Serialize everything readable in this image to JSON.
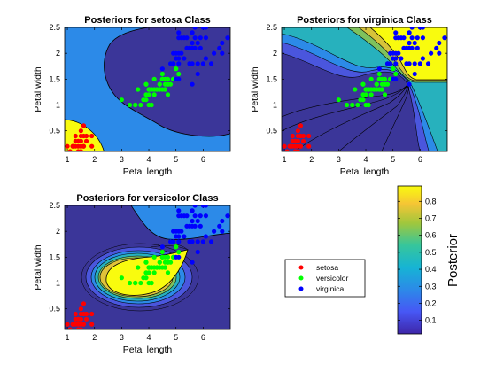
{
  "figure": {
    "colorbar": {
      "label": "Posterior",
      "ticks": [
        0.1,
        0.2,
        0.3,
        0.4,
        0.5,
        0.6,
        0.7,
        0.8
      ],
      "range": [
        0.02,
        0.89
      ]
    },
    "legend": {
      "placement": "bottom-right",
      "entries": [
        {
          "name": "setosa",
          "color": "#ff0000"
        },
        {
          "name": "versicolor",
          "color": "#00ff00"
        },
        {
          "name": "virginica",
          "color": "#0000ff"
        }
      ]
    },
    "colors": {
      "low": "#3b3699",
      "blue": "#2c8ae8",
      "teal": "#2cb8b0",
      "yellow": "#f9fb0e"
    }
  },
  "chart_data": [
    {
      "type": "heatmap",
      "title": "Posteriors for setosa Class",
      "xlabel": "Petal length",
      "ylabel": "Petal width",
      "xlim": [
        0.9,
        7.0
      ],
      "ylim": [
        0.1,
        2.5
      ],
      "xticks": [
        1,
        2,
        3,
        4,
        5,
        6
      ],
      "yticks": [
        0.5,
        1,
        1.5,
        2,
        2.5
      ],
      "grid": false
    },
    {
      "type": "heatmap",
      "title": "Posteriors for virginica Class",
      "xlabel": "Petal length",
      "ylabel": "Petal width",
      "xlim": [
        0.9,
        7.0
      ],
      "ylim": [
        0.1,
        2.5
      ],
      "xticks": [
        1,
        2,
        3,
        4,
        5,
        6
      ],
      "yticks": [
        0.5,
        1,
        1.5,
        2,
        2.5
      ],
      "grid": false
    },
    {
      "type": "heatmap",
      "title": "Posteriors for versicolor Class",
      "xlabel": "Petal length",
      "ylabel": "Petal width",
      "xlim": [
        0.9,
        7.0
      ],
      "ylim": [
        0.1,
        2.5
      ],
      "xticks": [
        1,
        2,
        3,
        4,
        5,
        6
      ],
      "yticks": [
        0.5,
        1,
        1.5,
        2,
        2.5
      ],
      "grid": false
    }
  ],
  "scatter": {
    "setosa": [
      [
        1.4,
        0.2
      ],
      [
        1.3,
        0.2
      ],
      [
        1.5,
        0.2
      ],
      [
        1.7,
        0.4
      ],
      [
        1.4,
        0.3
      ],
      [
        1.5,
        0.1
      ],
      [
        1.6,
        0.2
      ],
      [
        1.1,
        0.1
      ],
      [
        1.2,
        0.2
      ],
      [
        1.3,
        0.4
      ],
      [
        1.7,
        0.3
      ],
      [
        1.5,
        0.4
      ],
      [
        1.0,
        0.2
      ],
      [
        1.9,
        0.2
      ],
      [
        1.6,
        0.4
      ],
      [
        1.9,
        0.4
      ],
      [
        1.6,
        0.6
      ],
      [
        1.5,
        0.3
      ],
      [
        1.4,
        0.1
      ],
      [
        1.2,
        0.2
      ],
      [
        1.3,
        0.3
      ],
      [
        1.6,
        0.2
      ],
      [
        1.5,
        0.5
      ]
    ],
    "versicolor": [
      [
        4.7,
        1.4
      ],
      [
        4.5,
        1.5
      ],
      [
        4.9,
        1.5
      ],
      [
        4.0,
        1.3
      ],
      [
        4.6,
        1.5
      ],
      [
        3.3,
        1.0
      ],
      [
        3.9,
        1.4
      ],
      [
        3.5,
        1.0
      ],
      [
        4.2,
        1.5
      ],
      [
        4.0,
        1.0
      ],
      [
        4.7,
        1.4
      ],
      [
        3.6,
        1.3
      ],
      [
        4.4,
        1.4
      ],
      [
        4.1,
        1.0
      ],
      [
        4.5,
        1.5
      ],
      [
        3.9,
        1.1
      ],
      [
        4.8,
        1.8
      ],
      [
        4.0,
        1.3
      ],
      [
        4.9,
        1.5
      ],
      [
        4.7,
        1.2
      ],
      [
        4.3,
        1.3
      ],
      [
        4.4,
        1.4
      ],
      [
        5.0,
        1.7
      ],
      [
        4.5,
        1.5
      ],
      [
        3.5,
        1.0
      ],
      [
        3.8,
        1.1
      ],
      [
        3.7,
        1.0
      ],
      [
        3.9,
        1.2
      ],
      [
        5.1,
        1.6
      ],
      [
        4.5,
        1.6
      ],
      [
        4.7,
        1.5
      ],
      [
        4.4,
        1.3
      ],
      [
        4.1,
        1.3
      ],
      [
        4.0,
        1.2
      ],
      [
        4.6,
        1.4
      ],
      [
        3.0,
        1.1
      ],
      [
        4.2,
        1.2
      ],
      [
        4.2,
        1.3
      ],
      [
        4.3,
        1.3
      ],
      [
        4.1,
        1.3
      ],
      [
        4.5,
        1.3
      ],
      [
        4.6,
        1.3
      ],
      [
        3.9,
        1.4
      ],
      [
        4.8,
        1.4
      ],
      [
        4.1,
        1.0
      ],
      [
        4.8,
        1.8
      ],
      [
        4.9,
        1.5
      ],
      [
        4.0,
        1.3
      ],
      [
        4.6,
        1.3
      ],
      [
        5.0,
        1.7
      ]
    ],
    "virginica": [
      [
        6.0,
        2.5
      ],
      [
        5.1,
        1.9
      ],
      [
        5.9,
        2.1
      ],
      [
        5.6,
        1.8
      ],
      [
        5.8,
        2.2
      ],
      [
        6.6,
        2.1
      ],
      [
        4.5,
        1.7
      ],
      [
        6.3,
        1.8
      ],
      [
        5.8,
        1.8
      ],
      [
        6.1,
        2.5
      ],
      [
        5.1,
        2.0
      ],
      [
        5.3,
        1.9
      ],
      [
        5.5,
        2.1
      ],
      [
        5.0,
        2.0
      ],
      [
        5.1,
        2.4
      ],
      [
        5.3,
        2.3
      ],
      [
        5.5,
        1.8
      ],
      [
        6.7,
        2.2
      ],
      [
        6.9,
        2.3
      ],
      [
        5.0,
        1.5
      ],
      [
        5.7,
        2.3
      ],
      [
        4.9,
        2.0
      ],
      [
        6.7,
        2.0
      ],
      [
        4.9,
        1.8
      ],
      [
        5.7,
        2.1
      ],
      [
        6.0,
        1.8
      ],
      [
        4.8,
        1.8
      ],
      [
        4.9,
        1.8
      ],
      [
        5.6,
        2.1
      ],
      [
        5.8,
        1.6
      ],
      [
        6.1,
        1.9
      ],
      [
        6.4,
        2.0
      ],
      [
        5.6,
        2.2
      ],
      [
        5.1,
        1.5
      ],
      [
        5.6,
        1.4
      ],
      [
        6.1,
        2.3
      ],
      [
        5.6,
        2.4
      ],
      [
        5.5,
        1.8
      ],
      [
        4.8,
        1.8
      ],
      [
        5.4,
        2.1
      ],
      [
        5.6,
        2.4
      ],
      [
        5.1,
        2.3
      ],
      [
        5.9,
        2.3
      ],
      [
        5.7,
        2.5
      ],
      [
        5.2,
        2.3
      ],
      [
        5.0,
        1.9
      ],
      [
        5.2,
        2.0
      ],
      [
        5.4,
        2.3
      ],
      [
        5.1,
        1.8
      ]
    ]
  }
}
